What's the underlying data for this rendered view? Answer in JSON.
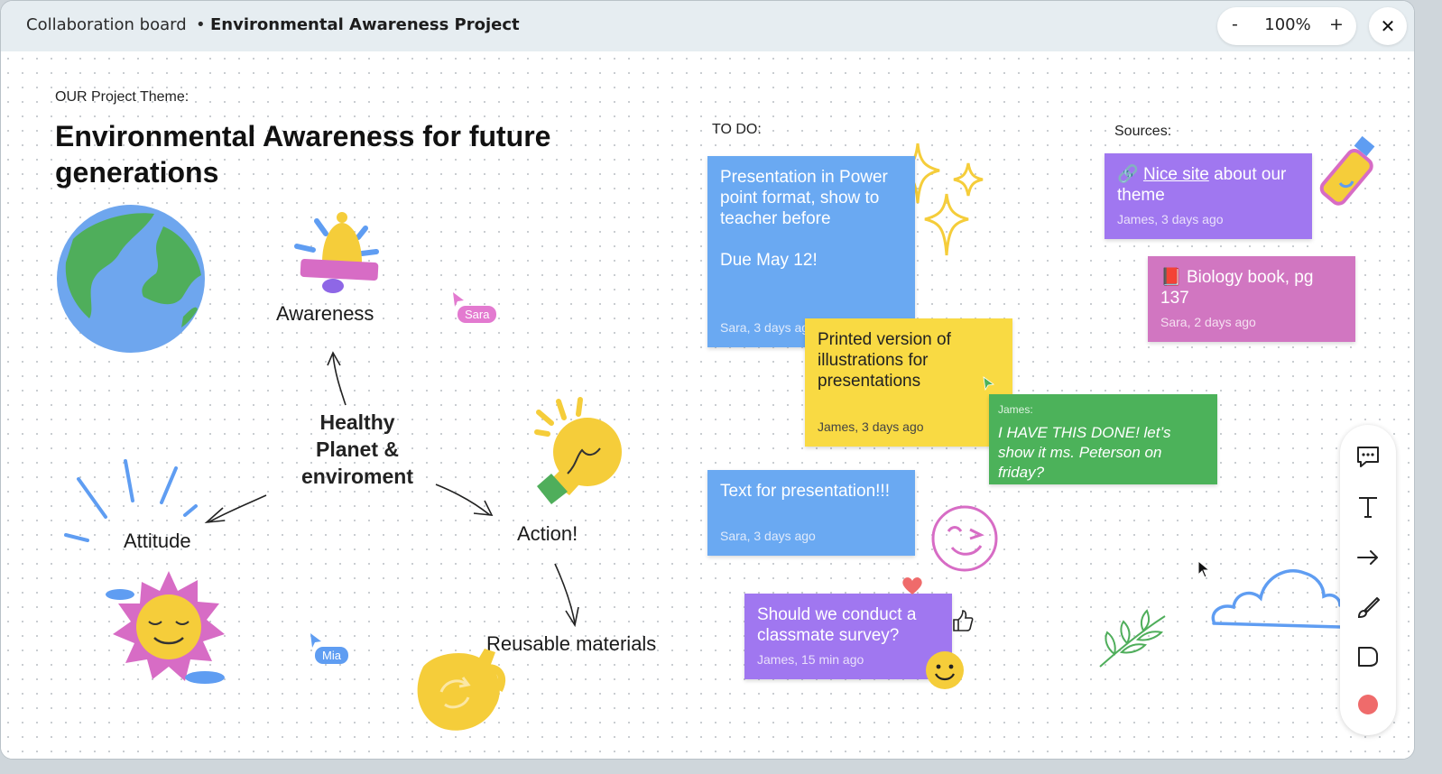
{
  "header": {
    "board_label": "Collaboration board",
    "separator": "•",
    "project_title": "Environmental Awareness Project",
    "zoom_minus": "-",
    "zoom_level": "100%",
    "zoom_plus": "+",
    "close": "✕"
  },
  "board": {
    "theme_label": "OUR Project Theme:",
    "theme_title": "Environmental Awareness for future generations",
    "mindmap": {
      "center": "Healthy Planet & enviroment",
      "awareness": "Awareness",
      "attitude": "Attitude",
      "action": "Action!",
      "reusable": "Reusable materials"
    },
    "todo_label": "TO DO:",
    "sources_label": "Sources:"
  },
  "notes": {
    "presentation": {
      "text": "Presentation in Power point format, show to teacher before",
      "due": "Due May 12!",
      "meta": "Sara, 3 days ago"
    },
    "printed": {
      "text": "Printed version of illustrations for presentations",
      "meta": "James, 3 days ago"
    },
    "comment": {
      "author": "James:",
      "text": "I HAVE THIS DONE! let’s show it ms. Peterson on friday?"
    },
    "text_for": {
      "text": "Text for presentation!!!",
      "meta": "Sara, 3 days ago"
    },
    "survey": {
      "text": "Should we conduct a classmate survey?",
      "meta": "James, 15 min ago"
    },
    "nice_site": {
      "link_icon": "🔗",
      "link_text": "Nice site",
      "text": "about our theme",
      "meta": "James, 3 days ago"
    },
    "biology": {
      "icon": "📕",
      "text": "Biology book, pg 137",
      "meta": "Sara, 2 days ago"
    }
  },
  "cursors": {
    "sara": "Sara",
    "mia": "Mia"
  },
  "toolbar": {
    "tools": [
      "comment-icon",
      "text-icon",
      "arrow-icon",
      "brush-icon",
      "sticky-note-icon",
      "color-picker-icon"
    ],
    "active_color": "#ef6b6b"
  },
  "colors": {
    "blue_note": "#6aa9f2",
    "yellow_note": "#f9da43",
    "green_note": "#4cb25a",
    "purple_note": "#a077f0",
    "pink_note": "#d176c1"
  }
}
